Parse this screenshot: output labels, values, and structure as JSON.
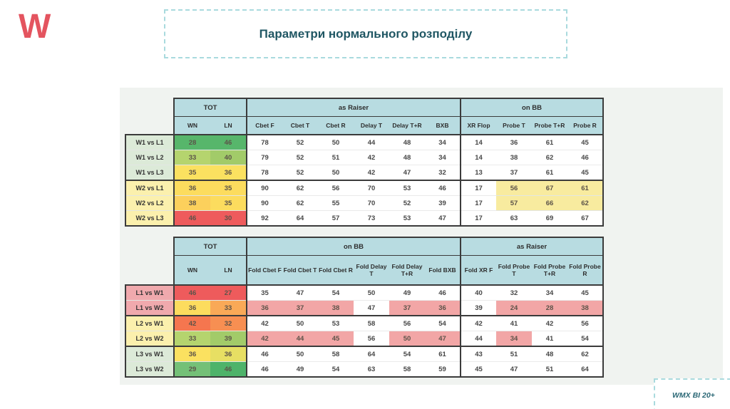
{
  "slide": {
    "logo": "W",
    "title": "Параметри нормального розподілу",
    "footer": "WMX BI 20+"
  },
  "colors": {
    "logo_red": "#e4545f",
    "title_teal": "#1f5663",
    "dashed_border": "#a9dade",
    "table_header_bg": "#b8dce1",
    "panel_bg": "#f0f3f0"
  },
  "palette": {
    "green": "#57b66b",
    "green2": "#74c077",
    "green3": "#4eb36a",
    "yellowGreen": "#b5d46e",
    "yellowGreen2": "#a2cb69",
    "yellow": "#fbe160",
    "yellow2": "#e7df63",
    "gold": "#fcdc5e",
    "gold2": "#fcd05c",
    "orange": "#f9a957",
    "orange2": "#f78f52",
    "orangeRed": "#f5764f",
    "red": "#ee5b5c",
    "hlYellow": "#f8eb9f",
    "hlPink": "#f2a6a6",
    "labelGreen": "#dcead8",
    "labelYellow": "#fbf0ad",
    "labelPink": "#f0a9ad"
  },
  "tables": [
    {
      "name": "winners-vs-losers-table",
      "tall_head": false,
      "col_groups": [
        {
          "label": "TOT",
          "span": 2
        },
        {
          "label": "as Raiser",
          "span": 6
        },
        {
          "label": "on BB",
          "span": 4
        }
      ],
      "columns": [
        "WN",
        "LN",
        "Cbet F",
        "Cbet T",
        "Cbet R",
        "Delay T",
        "Delay T+R",
        "BXB",
        "XR Flop",
        "Probe T",
        "Probe T+R",
        "Probe R"
      ],
      "row_group_bgs": [
        "labelGreen",
        "labelYellow"
      ],
      "rows": [
        {
          "label": "W1 vs L1",
          "group": 0,
          "values": [
            28,
            46,
            78,
            52,
            50,
            44,
            48,
            34,
            14,
            36,
            61,
            45
          ],
          "colors": [
            "green",
            "green"
          ]
        },
        {
          "label": "W1 vs L2",
          "group": 0,
          "values": [
            33,
            40,
            79,
            52,
            51,
            42,
            48,
            34,
            14,
            38,
            62,
            46
          ],
          "colors": [
            "yellowGreen",
            "yellowGreen2"
          ]
        },
        {
          "label": "W1 vs L3",
          "group": 0,
          "values": [
            35,
            36,
            78,
            52,
            50,
            42,
            47,
            32,
            13,
            37,
            61,
            45
          ],
          "colors": [
            "yellow",
            "yellow"
          ]
        },
        {
          "label": "W2 vs L1",
          "group": 1,
          "values": [
            36,
            35,
            90,
            62,
            56,
            70,
            53,
            46,
            17,
            56,
            67,
            61
          ],
          "colors": [
            "gold",
            "gold",
            null,
            null,
            null,
            null,
            null,
            null,
            null,
            "hlYellow",
            "hlYellow",
            "hlYellow"
          ]
        },
        {
          "label": "W2 vs L2",
          "group": 1,
          "values": [
            38,
            35,
            90,
            62,
            55,
            70,
            52,
            39,
            17,
            57,
            66,
            62
          ],
          "colors": [
            "gold2",
            "gold",
            null,
            null,
            null,
            null,
            null,
            null,
            null,
            "hlYellow",
            "hlYellow",
            "hlYellow"
          ]
        },
        {
          "label": "W2 vs L3",
          "group": 1,
          "values": [
            46,
            30,
            92,
            64,
            57,
            73,
            53,
            47,
            17,
            63,
            69,
            67
          ],
          "colors": [
            "red",
            "red"
          ]
        }
      ]
    },
    {
      "name": "losers-vs-winners-table",
      "tall_head": true,
      "col_groups": [
        {
          "label": "TOT",
          "span": 2
        },
        {
          "label": "on BB",
          "span": 6
        },
        {
          "label": "as Raiser",
          "span": 4
        }
      ],
      "columns": [
        "WN",
        "LN",
        "Fold Cbet F",
        "Fold Cbet T",
        "Fold Cbet R",
        "Fold Delay\nT",
        "Fold Delay\nT+R",
        "Fold BXB",
        "Fold XR F",
        "Fold Probe\nT",
        "Fold Probe\nT+R",
        "Fold Probe\nR"
      ],
      "row_group_bgs": [
        "labelPink",
        "labelYellow",
        "labelGreen"
      ],
      "rows": [
        {
          "label": "L1 vs W1",
          "group": 0,
          "values": [
            46,
            27,
            35,
            47,
            54,
            50,
            49,
            46,
            40,
            32,
            34,
            45
          ],
          "colors": [
            "red",
            "red"
          ]
        },
        {
          "label": "L1 vs W2",
          "group": 0,
          "values": [
            36,
            33,
            36,
            37,
            38,
            47,
            37,
            36,
            39,
            24,
            28,
            38
          ],
          "colors": [
            "gold",
            "orange",
            "hlPink",
            "hlPink",
            "hlPink",
            null,
            "hlPink",
            "hlPink",
            null,
            "hlPink",
            "hlPink",
            "hlPink"
          ]
        },
        {
          "label": "L2 vs W1",
          "group": 1,
          "values": [
            42,
            32,
            42,
            50,
            53,
            58,
            56,
            54,
            42,
            41,
            42,
            56
          ],
          "colors": [
            "orangeRed",
            "orange2"
          ]
        },
        {
          "label": "L2 vs W2",
          "group": 1,
          "values": [
            33,
            39,
            42,
            44,
            45,
            56,
            50,
            47,
            44,
            34,
            41,
            54
          ],
          "colors": [
            "yellowGreen",
            "yellowGreen2",
            "hlPink",
            "hlPink",
            "hlPink",
            null,
            "hlPink",
            "hlPink",
            null,
            "hlPink"
          ]
        },
        {
          "label": "L3 vs W1",
          "group": 2,
          "values": [
            36,
            36,
            46,
            50,
            58,
            64,
            54,
            61,
            43,
            51,
            48,
            62
          ],
          "colors": [
            "yellow",
            "yellow2"
          ]
        },
        {
          "label": "L3 vs W2",
          "group": 2,
          "values": [
            29,
            46,
            46,
            49,
            54,
            63,
            58,
            59,
            45,
            47,
            51,
            64
          ],
          "colors": [
            "green2",
            "green3"
          ]
        }
      ]
    }
  ]
}
